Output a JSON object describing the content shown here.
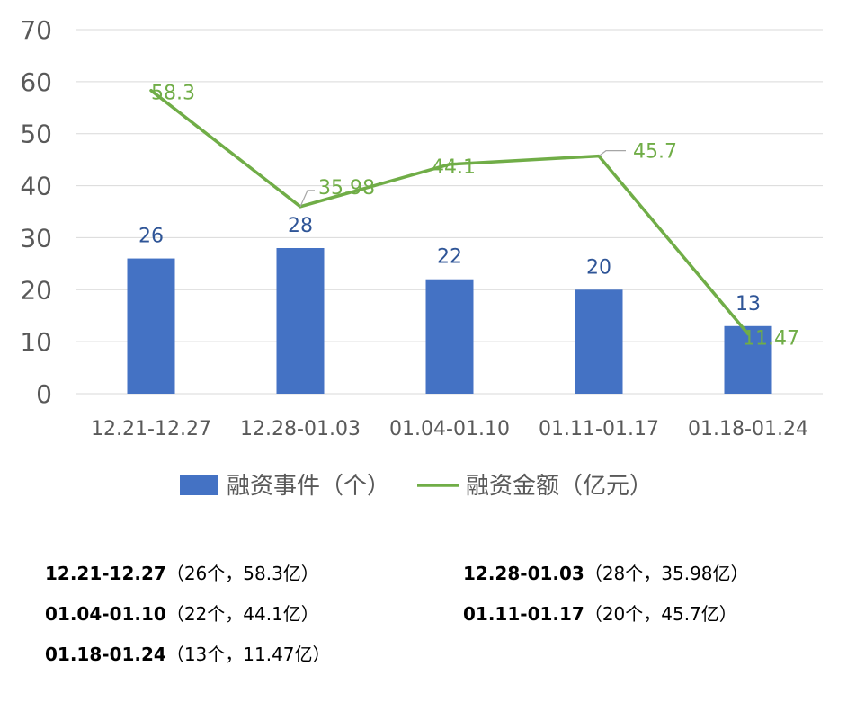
{
  "chart_data": {
    "type": "bar",
    "categories": [
      "12.21-12.27",
      "12.28-01.03",
      "01.04-01.10",
      "01.11-01.17",
      "01.18-01.24"
    ],
    "series": [
      {
        "name": "融资事件（个）",
        "type": "bar",
        "color": "#4472C4",
        "values": [
          26,
          28,
          22,
          20,
          13
        ],
        "value_labels": [
          "26",
          "28",
          "22",
          "20",
          "13"
        ]
      },
      {
        "name": "融资金额（亿元）",
        "type": "line",
        "color": "#70AD47",
        "values": [
          58.3,
          35.98,
          44.1,
          45.7,
          11.47
        ],
        "value_labels": [
          "58.3",
          "35.98",
          "44.1",
          "45.7",
          "11.47"
        ]
      }
    ],
    "ylim": [
      0,
      70
    ],
    "yticks": [
      "0",
      "10",
      "20",
      "30",
      "40",
      "50",
      "60",
      "70"
    ],
    "grid": true,
    "legend_position": "bottom",
    "colors": {
      "bar_label": "#2F5597",
      "line_label": "#70AD47",
      "axis_text": "#595959",
      "grid": "#D9D9D9",
      "leader": "#A6A6A6"
    }
  },
  "notes": [
    {
      "period": "12.21-12.27",
      "detail": "（26个，58.3亿）"
    },
    {
      "period": "12.28-01.03",
      "detail": "（28个，35.98亿）"
    },
    {
      "period": "01.04-01.10",
      "detail": "（22个，44.1亿）"
    },
    {
      "period": "01.11-01.17",
      "detail": "（20个，45.7亿）"
    },
    {
      "period": "01.18-01.24",
      "detail": "（13个，11.47亿）"
    }
  ]
}
